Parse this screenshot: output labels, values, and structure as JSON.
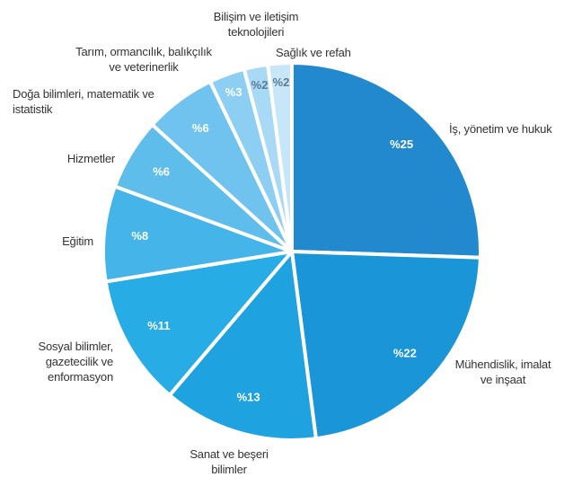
{
  "chart_data": {
    "type": "pie",
    "categories": [
      "İş, yönetim ve hukuk",
      "Mühendislik, imalat ve inşaat",
      "Sanat ve beşeri bilimler",
      "Sosyal bilimler, gazetecilik ve enformasyon",
      "Eğitim",
      "Hizmetler",
      "Doğa bilimleri, matematik ve istatistik",
      "Tarım, ormancılık, balıkçılık ve veterinerlik",
      "Bilişim ve iletişim teknolojileri",
      "Sağlık ve refah"
    ],
    "values": [
      25,
      22,
      13,
      11,
      8,
      6,
      6,
      3,
      2,
      2
    ],
    "value_labels": [
      "%25",
      "%22",
      "%13",
      "%11",
      "%8",
      "%6",
      "%6",
      "%3",
      "%2",
      "%2"
    ],
    "colors": [
      "#2389cf",
      "#1a96d8",
      "#1ea2e0",
      "#27ace6",
      "#45b4e8",
      "#5fbdec",
      "#6fc3ee",
      "#8ccff2",
      "#a8daf5",
      "#c7e6f8"
    ]
  }
}
